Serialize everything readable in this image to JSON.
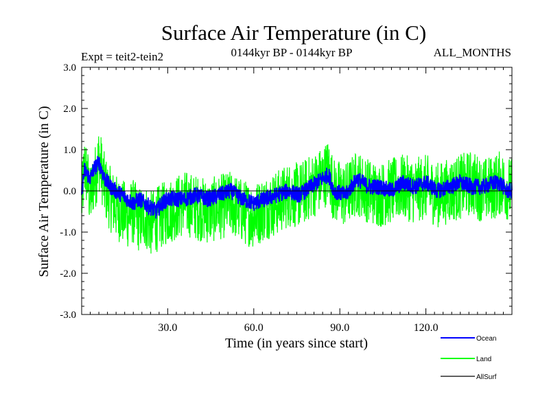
{
  "chart_data": {
    "type": "line",
    "title": "Surface Air Temperature (in C)",
    "subtitle_left": "Expt = teit2-tein2",
    "subtitle_center": "0144kyr BP - 0144kyr BP",
    "subtitle_right": "ALL_MONTHS",
    "xlabel": "Time (in years since start)",
    "ylabel": "Surface Air Temperature (in C)",
    "xlim": [
      0,
      150
    ],
    "ylim": [
      -3.0,
      3.0
    ],
    "x_ticks": [
      30,
      60,
      90,
      120
    ],
    "x_tick_labels": [
      "30.0",
      "60.0",
      "90.0",
      "120.0"
    ],
    "y_ticks": [
      -3,
      -2,
      -1,
      0,
      1,
      2,
      3
    ],
    "y_tick_labels": [
      "-3.0",
      "-2.0",
      "-1.0",
      "0.0",
      "1.0",
      "2.0",
      "3.0"
    ],
    "zero_line": 0.0,
    "series": [
      {
        "name": "Land",
        "color": "#00ff00",
        "x": [
          0,
          1,
          2,
          3,
          4,
          5,
          6,
          7,
          8,
          10,
          12,
          14,
          16,
          18,
          20,
          22,
          24,
          26,
          28,
          30,
          33,
          36,
          40,
          44,
          48,
          52,
          56,
          60,
          64,
          68,
          72,
          76,
          80,
          84,
          86,
          88,
          92,
          96,
          100,
          104,
          108,
          112,
          116,
          120,
          124,
          128,
          132,
          136,
          140,
          144,
          146,
          148,
          150
        ],
        "values": [
          -0.3,
          0.6,
          0.3,
          -0.2,
          0.2,
          0.4,
          0.8,
          0.5,
          0.1,
          -0.2,
          -0.4,
          -0.5,
          -0.6,
          -0.5,
          -0.7,
          -0.6,
          -0.8,
          -0.7,
          -0.6,
          -0.5,
          -0.4,
          -0.3,
          -0.4,
          -0.5,
          -0.4,
          -0.3,
          -0.5,
          -0.6,
          -0.4,
          -0.3,
          -0.1,
          -0.1,
          0.1,
          0.3,
          0.5,
          0.0,
          -0.1,
          0.2,
          0.0,
          -0.1,
          0.0,
          0.1,
          0.0,
          0.1,
          -0.1,
          0.0,
          0.1,
          0.2,
          0.0,
          0.1,
          0.2,
          0.1,
          0.0
        ],
        "spread": 0.8
      },
      {
        "name": "Ocean",
        "color": "#0000ff",
        "x": [
          0,
          1,
          2,
          3,
          4,
          5,
          6,
          7,
          8,
          10,
          12,
          14,
          16,
          18,
          20,
          22,
          24,
          26,
          28,
          30,
          33,
          36,
          40,
          44,
          48,
          52,
          56,
          60,
          64,
          68,
          72,
          76,
          80,
          84,
          86,
          88,
          92,
          96,
          100,
          104,
          108,
          112,
          116,
          120,
          124,
          128,
          132,
          136,
          140,
          144,
          146,
          148,
          150
        ],
        "values": [
          0.0,
          0.5,
          0.4,
          0.3,
          0.5,
          0.6,
          0.7,
          0.5,
          0.3,
          0.1,
          0.0,
          -0.1,
          -0.2,
          -0.3,
          -0.2,
          -0.3,
          -0.4,
          -0.5,
          -0.3,
          -0.2,
          -0.2,
          -0.2,
          -0.1,
          -0.2,
          -0.1,
          -0.0,
          -0.2,
          -0.3,
          -0.2,
          -0.1,
          0.0,
          -0.1,
          0.1,
          0.3,
          0.4,
          0.0,
          -0.1,
          0.3,
          0.1,
          0.1,
          0.0,
          0.2,
          0.1,
          0.2,
          0.0,
          0.1,
          0.2,
          0.1,
          0.1,
          0.2,
          0.2,
          0.0,
          0.0
        ],
        "spread": 0.2
      },
      {
        "name": "AllSurf",
        "color": "#000000",
        "x": [
          0,
          150
        ],
        "values": [
          0.0,
          0.0
        ],
        "spread": 0
      }
    ],
    "legend": {
      "placement": "bottom-right",
      "entries": [
        "Ocean",
        "Land",
        "AllSurf"
      ]
    }
  }
}
